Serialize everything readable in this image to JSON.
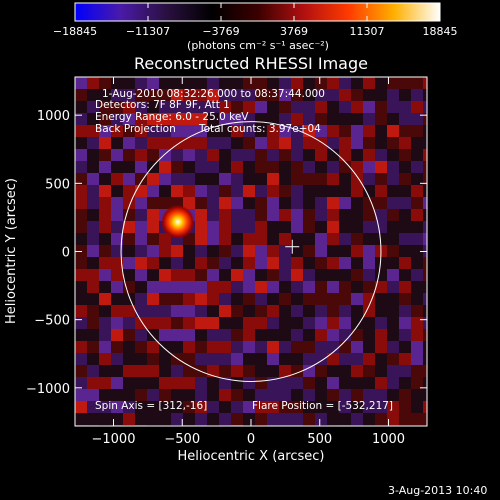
{
  "colorbar": {
    "ticks": [
      "−18845",
      "−11307",
      "−3769",
      "3769",
      "11307",
      "18845"
    ],
    "units": "(photons cm⁻² s⁻¹ asec⁻²)",
    "colors": [
      "#0000ff",
      "#4a1aa8",
      "#2a1040",
      "#000000",
      "#3a0000",
      "#b01010",
      "#ff3b00",
      "#ffb000",
      "#ffffff"
    ]
  },
  "chart_data": {
    "type": "heatmap",
    "title": "Reconstructed RHESSI Image",
    "xlabel": "Heliocentric X (arcsec)",
    "ylabel": "Heliocentric Y (arcsec)",
    "xlim": [
      -1280,
      1280
    ],
    "ylim": [
      -1280,
      1280
    ],
    "xticks": [
      -1000,
      -500,
      0,
      500,
      1000
    ],
    "yticks": [
      -1000,
      -500,
      0,
      500,
      1000
    ],
    "xtick_labels": [
      "−1000",
      "−500",
      "0",
      "500",
      "1000"
    ],
    "ytick_labels": [
      "−1000",
      "−500",
      "0",
      "500",
      "1000"
    ],
    "zlim": [
      -18845,
      18845
    ],
    "solar_limb": {
      "center": [
        0,
        0
      ],
      "radius_arcsec": 945
    },
    "sun_center_marker": [
      300,
      35
    ],
    "flare_source": {
      "position": [
        -532,
        217
      ],
      "peak": 18845
    }
  },
  "annotations": {
    "time_range": "1-Aug-2010 08:32:26.000 to 08:37:44.000",
    "detectors": "Detectors: 7F 8F 9F, Att 1",
    "energy": "Energy Range: 6.0 - 25.0 keV",
    "method": "Back Projection",
    "counts": "Total counts: 3.97e+04",
    "spin_axis": "Spin Axis = [312,-16]",
    "flare_position": "Flare Position = [-532,217]"
  },
  "footer": {
    "date": "3-Aug-2013 10:40"
  }
}
